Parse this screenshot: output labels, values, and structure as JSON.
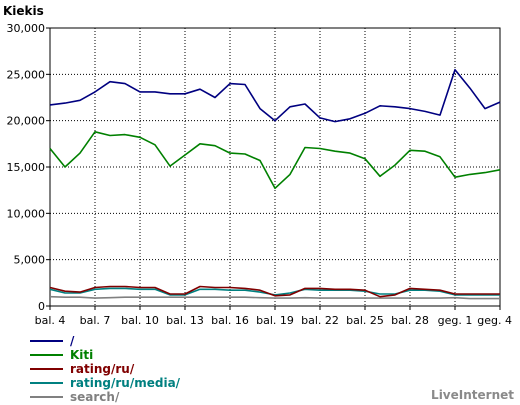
{
  "chart_data": {
    "type": "line",
    "title": "Kiekis",
    "brand": "LiveInternet",
    "ylim": [
      0,
      30000
    ],
    "y_ticks": [
      0,
      5000,
      10000,
      15000,
      20000,
      25000,
      30000
    ],
    "y_tick_labels": [
      "0",
      "5,000",
      "10,000",
      "15,000",
      "20,000",
      "25,000",
      "30,000"
    ],
    "x_ticks": [
      {
        "index": 0,
        "label": "bal. 4"
      },
      {
        "index": 3,
        "label": "bal. 7"
      },
      {
        "index": 6,
        "label": "bal. 10"
      },
      {
        "index": 9,
        "label": "bal. 13"
      },
      {
        "index": 12,
        "label": "bal. 16"
      },
      {
        "index": 15,
        "label": "bal. 19"
      },
      {
        "index": 18,
        "label": "bal. 22"
      },
      {
        "index": 21,
        "label": "bal. 25"
      },
      {
        "index": 24,
        "label": "bal. 28"
      },
      {
        "index": 27,
        "label": "geg. 1"
      },
      {
        "index": 30,
        "label": "geg. 4"
      }
    ],
    "grid": true,
    "series": [
      {
        "name": "/",
        "color": "#000080",
        "values": [
          21700,
          21900,
          22200,
          23100,
          24200,
          24000,
          23100,
          23100,
          22900,
          22900,
          23400,
          22500,
          24000,
          23900,
          21300,
          20000,
          21500,
          21800,
          20300,
          19900,
          20200,
          20800,
          21600,
          21500,
          21300,
          21000,
          20600,
          25500,
          23500,
          21300,
          22000
        ]
      },
      {
        "name": "Kiti",
        "color": "#008000",
        "values": [
          17000,
          15000,
          16500,
          18800,
          18400,
          18500,
          18200,
          17400,
          15100,
          16300,
          17500,
          17300,
          16500,
          16400,
          15700,
          12700,
          14200,
          17100,
          17000,
          16700,
          16500,
          15900,
          14000,
          15200,
          16800,
          16700,
          16100,
          13900,
          14200,
          14400,
          14700
        ]
      },
      {
        "name": "rating/ru/",
        "color": "#800000",
        "values": [
          2000,
          1600,
          1500,
          2000,
          2100,
          2100,
          2000,
          2000,
          1300,
          1300,
          2100,
          2000,
          2000,
          1900,
          1700,
          1100,
          1200,
          1900,
          1900,
          1800,
          1800,
          1700,
          1000,
          1200,
          1900,
          1800,
          1700,
          1300,
          1300,
          1300,
          1300
        ]
      },
      {
        "name": "rating/ru/media/",
        "color": "#008080",
        "values": [
          1800,
          1400,
          1400,
          1800,
          1900,
          1900,
          1800,
          1800,
          1200,
          1200,
          1800,
          1800,
          1700,
          1700,
          1500,
          1200,
          1400,
          1800,
          1700,
          1700,
          1700,
          1600,
          1300,
          1300,
          1700,
          1700,
          1600,
          1200,
          1200,
          1200,
          1200
        ]
      },
      {
        "name": "search/",
        "color": "#808080",
        "values": [
          1000,
          950,
          950,
          850,
          900,
          950,
          950,
          950,
          950,
          950,
          950,
          950,
          950,
          950,
          900,
          850,
          850,
          900,
          850,
          850,
          850,
          850,
          850,
          850,
          850,
          850,
          850,
          900,
          800,
          800,
          800
        ]
      }
    ]
  }
}
